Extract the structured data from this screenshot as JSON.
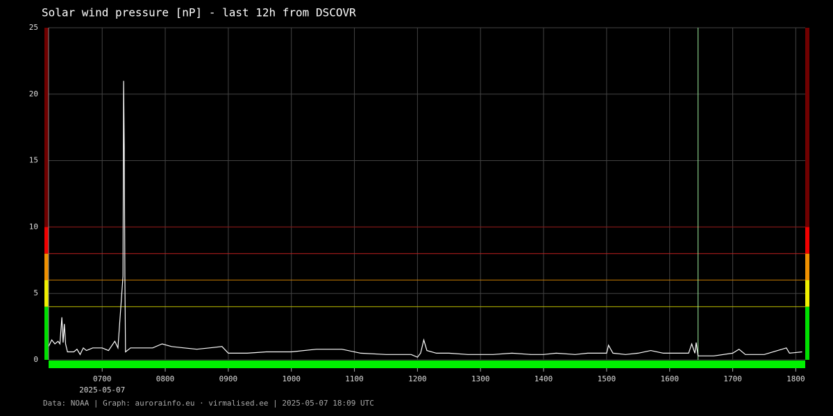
{
  "chart_data": {
    "type": "line",
    "title": "Solar wind pressure [nP] - last 12h from DSCOVR",
    "date_label": "2025-05-07",
    "footer": "Data: NOAA | Graph: aurorainfo.eu · virmalised.ee | 2025-05-07 18:09 UTC",
    "xlim": [
      6.15,
      18.15
    ],
    "xticks": [
      {
        "value": 7,
        "label": "0700"
      },
      {
        "value": 8,
        "label": "0800"
      },
      {
        "value": 9,
        "label": "0900"
      },
      {
        "value": 10,
        "label": "1000"
      },
      {
        "value": 11,
        "label": "1100"
      },
      {
        "value": 12,
        "label": "1200"
      },
      {
        "value": 13,
        "label": "1300"
      },
      {
        "value": 14,
        "label": "1400"
      },
      {
        "value": 15,
        "label": "1500"
      },
      {
        "value": 16,
        "label": "1600"
      },
      {
        "value": 17,
        "label": "1700"
      },
      {
        "value": 18,
        "label": "1800"
      }
    ],
    "ylim": [
      0,
      25
    ],
    "yticks": [
      0,
      5,
      10,
      15,
      20,
      25
    ],
    "grid": true,
    "bands": [
      {
        "range": [
          0,
          4
        ],
        "color": "#00e000",
        "line": "#b8b800"
      },
      {
        "range": [
          4,
          6
        ],
        "color": "#f0f000",
        "line": "#d08000"
      },
      {
        "range": [
          6,
          8
        ],
        "color": "#f09000",
        "line": "#c02020"
      },
      {
        "range": [
          8,
          10
        ],
        "color": "#f00000",
        "line": "#901010"
      },
      {
        "range": [
          10,
          25
        ],
        "color": "#700000"
      }
    ],
    "marker_x": 16.45,
    "marker_color": "#a0f0a0",
    "x": [
      6.15,
      6.2,
      6.25,
      6.3,
      6.33,
      6.36,
      6.38,
      6.4,
      6.42,
      6.45,
      6.55,
      6.6,
      6.65,
      6.7,
      6.75,
      6.85,
      7.0,
      7.1,
      7.2,
      7.25,
      7.33,
      7.34,
      7.35,
      7.36,
      7.37,
      7.45,
      7.6,
      7.8,
      7.95,
      8.1,
      8.3,
      8.5,
      8.7,
      8.9,
      9.0,
      9.3,
      9.6,
      10.0,
      10.4,
      10.8,
      11.1,
      11.5,
      11.9,
      12.0,
      12.05,
      12.1,
      12.15,
      12.3,
      12.5,
      12.8,
      13.2,
      13.5,
      13.8,
      14.0,
      14.2,
      14.5,
      14.7,
      15.0,
      15.03,
      15.1,
      15.3,
      15.5,
      15.7,
      15.9,
      16.3,
      16.35,
      16.4,
      16.42,
      16.45,
      16.7,
      17.0,
      17.1,
      17.2,
      17.5,
      17.85,
      17.9,
      18.1
    ],
    "series": [
      {
        "color": "#ffffff",
        "values": [
          1.0,
          1.5,
          1.2,
          1.4,
          1.2,
          3.2,
          1.3,
          2.7,
          1.2,
          0.6,
          0.6,
          0.8,
          0.4,
          0.9,
          0.7,
          0.9,
          0.9,
          0.7,
          1.4,
          0.9,
          6.3,
          21.0,
          16.0,
          6.3,
          0.6,
          0.9,
          0.9,
          0.9,
          1.2,
          1.0,
          0.9,
          0.8,
          0.9,
          1.0,
          0.5,
          0.5,
          0.6,
          0.6,
          0.8,
          0.8,
          0.5,
          0.4,
          0.4,
          0.2,
          0.5,
          1.5,
          0.7,
          0.5,
          0.5,
          0.4,
          0.4,
          0.5,
          0.4,
          0.4,
          0.5,
          0.4,
          0.5,
          0.5,
          1.1,
          0.5,
          0.4,
          0.5,
          0.7,
          0.5,
          0.5,
          1.2,
          0.5,
          1.3,
          0.3,
          0.3,
          0.5,
          0.8,
          0.4,
          0.4,
          0.9,
          0.5,
          0.6
        ]
      }
    ]
  }
}
